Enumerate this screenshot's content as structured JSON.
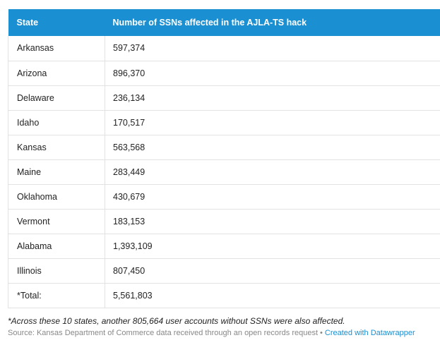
{
  "table": {
    "headers": {
      "state": "State",
      "number": "Number of SSNs affected in the AJLA-TS hack"
    },
    "rows": [
      {
        "state": "Arkansas",
        "number": "597,374"
      },
      {
        "state": "Arizona",
        "number": "896,370"
      },
      {
        "state": "Delaware",
        "number": "236,134"
      },
      {
        "state": "Idaho",
        "number": "170,517"
      },
      {
        "state": "Kansas",
        "number": "563,568"
      },
      {
        "state": "Maine",
        "number": "283,449"
      },
      {
        "state": "Oklahoma",
        "number": "430,679"
      },
      {
        "state": "Vermont",
        "number": "183,153"
      },
      {
        "state": "Alabama",
        "number": "1,393,109"
      },
      {
        "state": "Illinois",
        "number": "807,450"
      },
      {
        "state": "*Total:",
        "number": "5,561,803"
      }
    ]
  },
  "footnote": "*Across these 10 states, another 805,664 user accounts without SSNs were also affected.",
  "source": {
    "text": "Source: Kansas Department of Commerce data received through an open records request",
    "separator": "•",
    "link_label": "Created with Datawrapper"
  },
  "colors": {
    "header_bg": "#1a8fd1",
    "header_text": "#ffffff",
    "link": "#1a8fd1",
    "border": "#e2e2e2",
    "source_text": "#888888"
  }
}
